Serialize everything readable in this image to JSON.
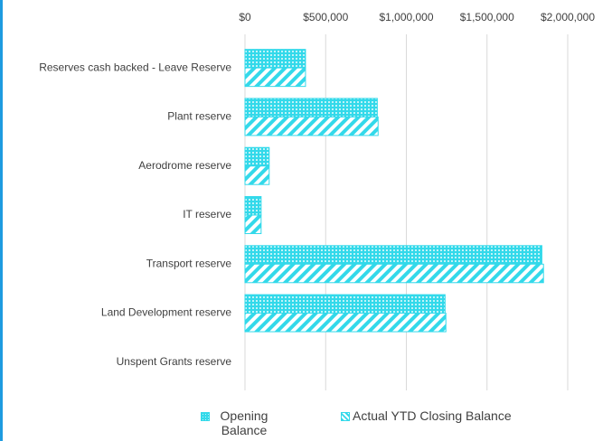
{
  "chart_data": {
    "type": "hbar",
    "categories": [
      "Reserves cash backed - Leave Reserve",
      "Plant reserve",
      "Aerodrome reserve",
      "IT reserve",
      "Transport reserve",
      "Land Development reserve",
      "Unspent Grants reserve"
    ],
    "series": [
      {
        "name": "Opening Balance",
        "color": "#33d9ea",
        "pattern": "dots",
        "values": [
          375000,
          820000,
          150000,
          100000,
          1840000,
          1240000,
          0
        ]
      },
      {
        "name": "Actual YTD Closing Balance",
        "color": "#33d9ea",
        "pattern": "stripes",
        "values": [
          375000,
          825000,
          150000,
          100000,
          1850000,
          1245000,
          0
        ]
      }
    ],
    "xlim": [
      0,
      2000000
    ],
    "xticks": [
      {
        "value": 0,
        "label": "$0"
      },
      {
        "value": 500000,
        "label": "$500,000"
      },
      {
        "value": 1000000,
        "label": "$1,000,000"
      },
      {
        "value": 1500000,
        "label": "$1,500,000"
      },
      {
        "value": 2000000,
        "label": "$2,000,000"
      }
    ],
    "grid": true,
    "legend": "bottom"
  }
}
